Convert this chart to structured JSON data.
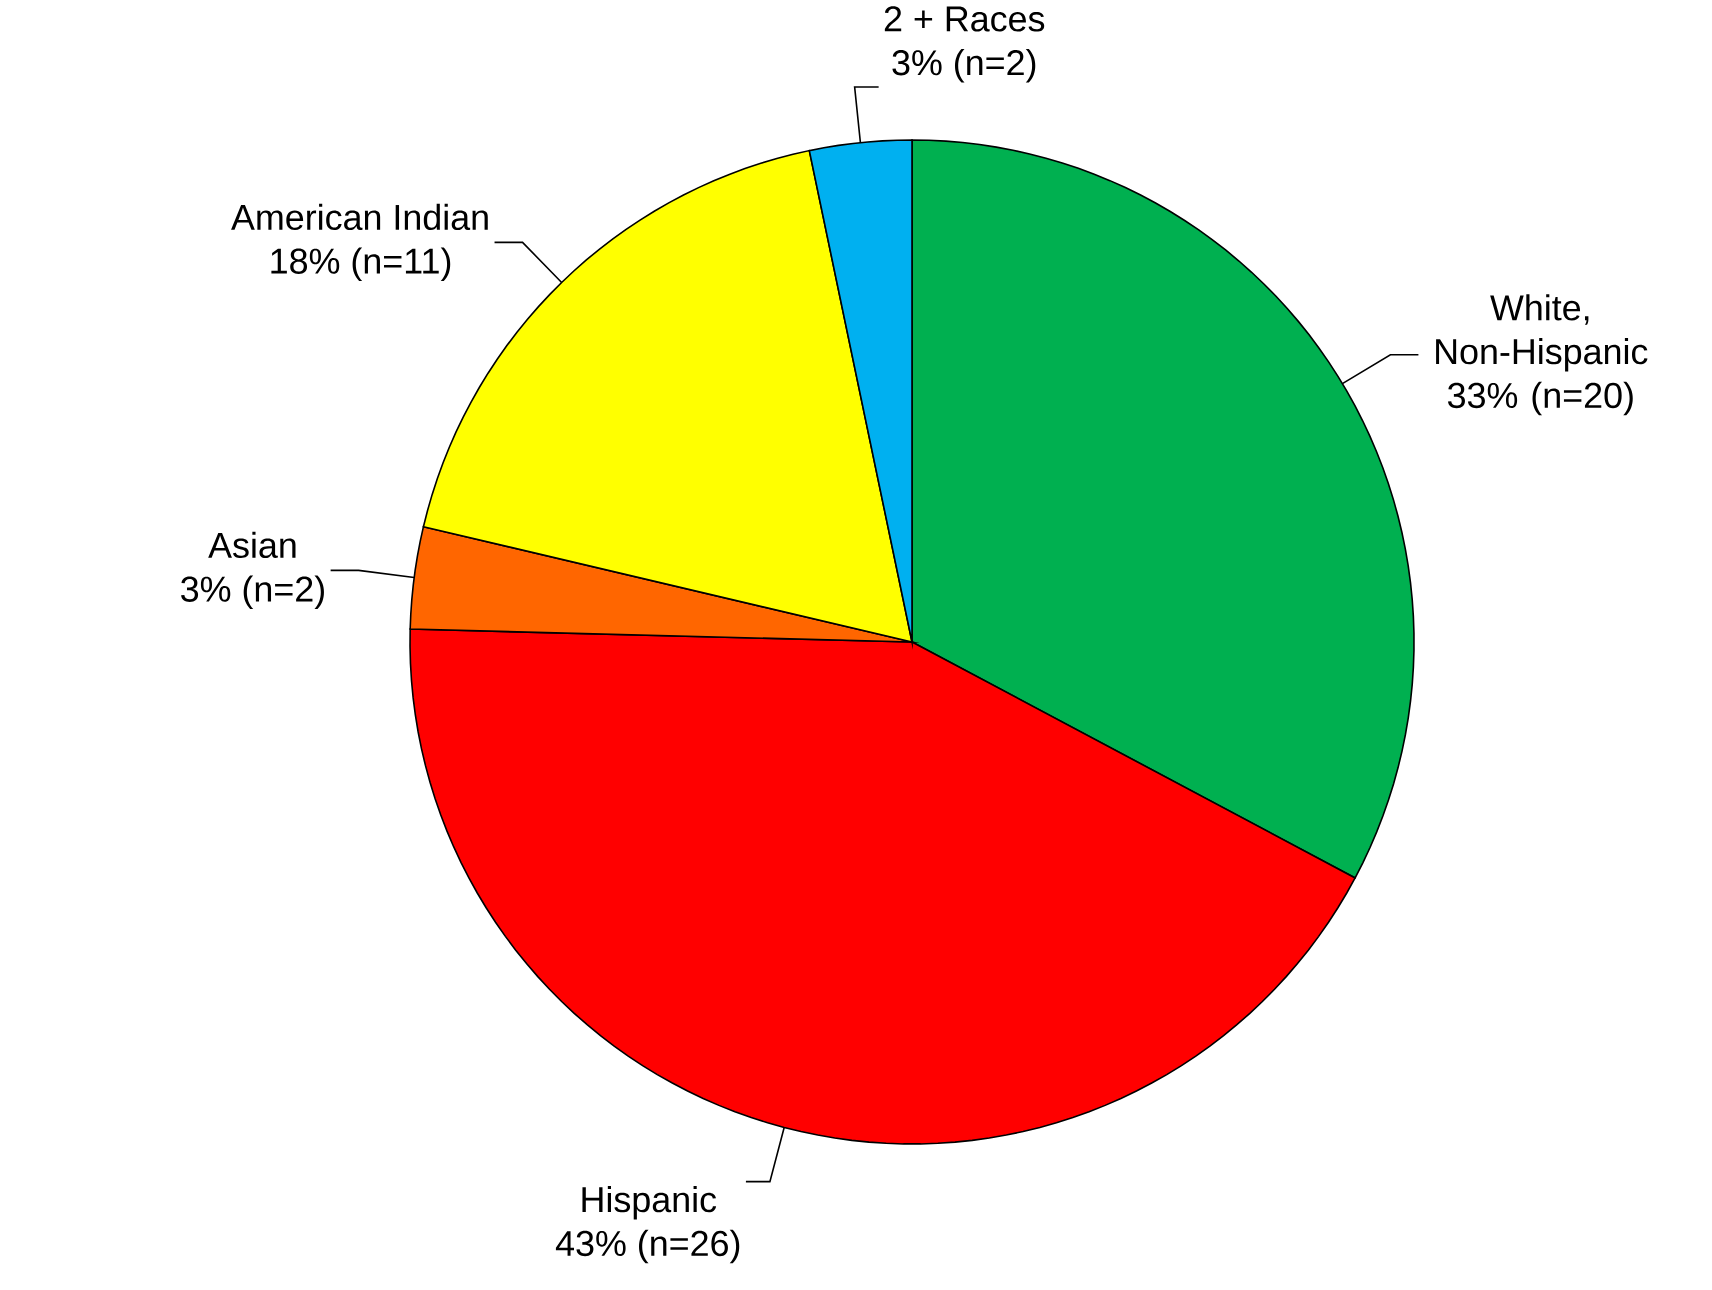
{
  "chart_data": {
    "type": "pie",
    "categories": [
      "White, Non-Hispanic",
      "Hispanic",
      "Asian",
      "American Indian",
      "2 + Races"
    ],
    "values": [
      20,
      26,
      2,
      11,
      2
    ],
    "colors": [
      "#00b050",
      "#ff0000",
      "#ff6600",
      "#ffff00",
      "#00b0f0"
    ],
    "value_labels": [
      "33% (n=20)",
      "43% (n=26)",
      "3% (n=2)",
      "18% (n=11)",
      "3% (n=2)"
    ]
  }
}
